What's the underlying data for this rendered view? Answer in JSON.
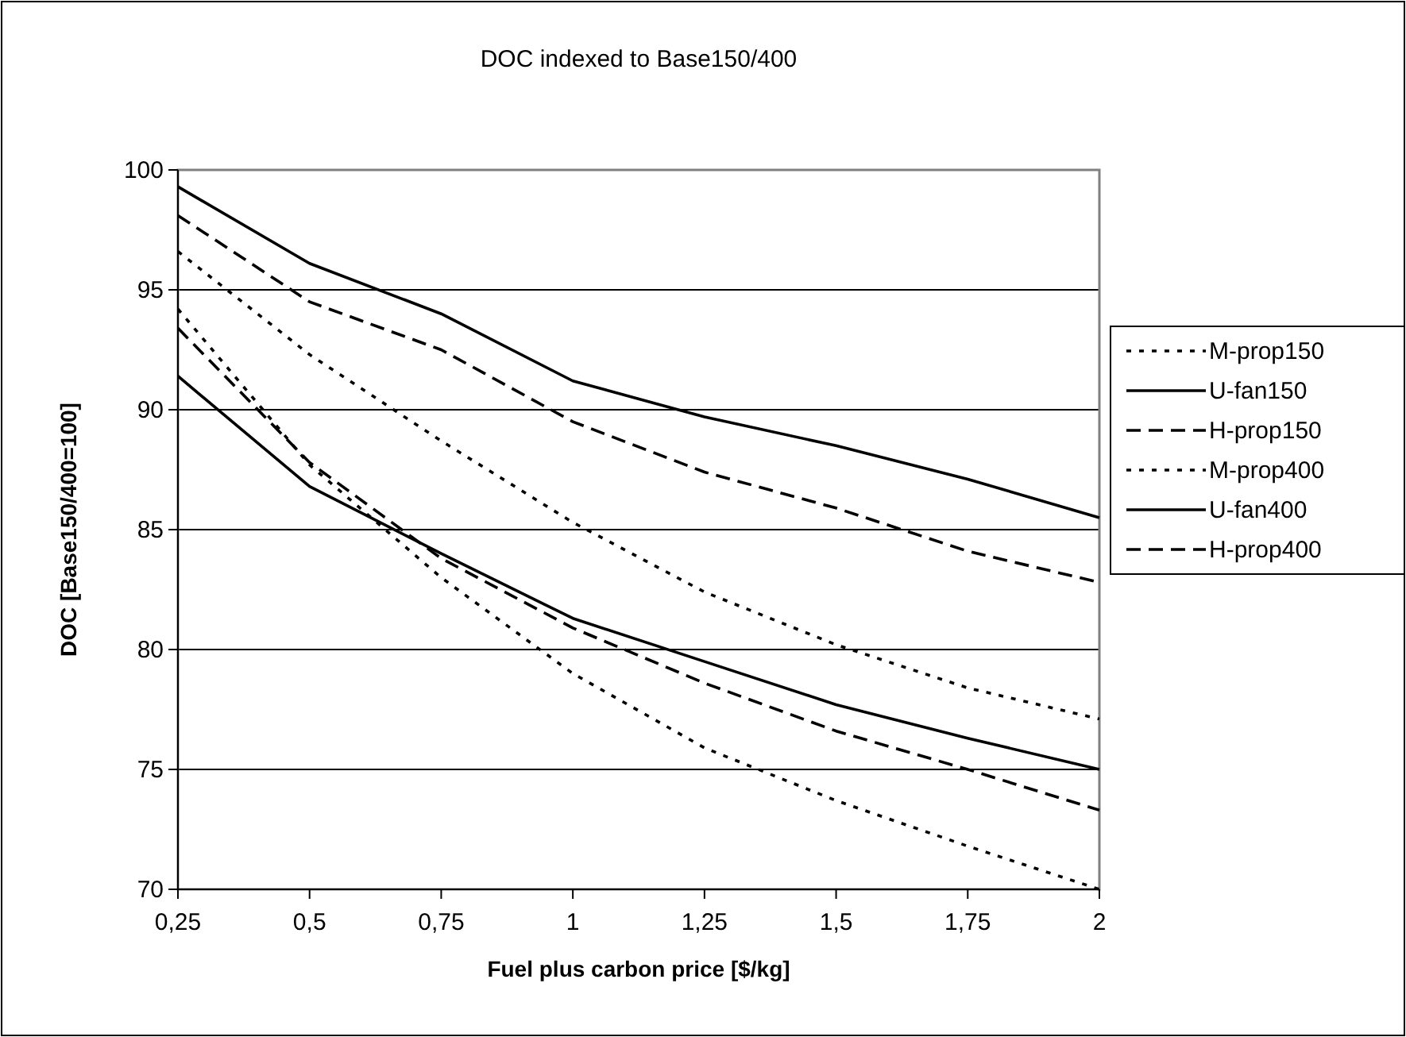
{
  "chart_data": {
    "type": "line",
    "title": "DOC indexed to Base150/400",
    "xlabel": "Fuel plus carbon price [$/kg]",
    "ylabel": "DOC [Base150/400=100]",
    "x": [
      0.25,
      0.5,
      0.75,
      1,
      1.25,
      1.5,
      1.75,
      2
    ],
    "xlim": [
      0.25,
      2
    ],
    "xticks": [
      {
        "value": 0.25,
        "label": "0,25"
      },
      {
        "value": 0.5,
        "label": "0,5"
      },
      {
        "value": 0.75,
        "label": "0,75"
      },
      1,
      {
        "value": 1.25,
        "label": "1,25"
      },
      {
        "value": 1.5,
        "label": "1,5"
      },
      {
        "value": 1.75,
        "label": "1,75"
      },
      2
    ],
    "ylim": [
      70,
      100
    ],
    "yticks": [
      70,
      75,
      80,
      85,
      90,
      95,
      100
    ],
    "grid": "y",
    "legend": "right",
    "series": [
      {
        "name": "M-prop150",
        "color": "#000000",
        "line_style": "dotted",
        "values": [
          96.6,
          92.3,
          88.7,
          85.3,
          82.4,
          80.2,
          78.4,
          77.1
        ]
      },
      {
        "name": "U-fan150",
        "color": "#000000",
        "line_style": "solid",
        "values": [
          99.3,
          96.1,
          94.0,
          91.2,
          89.7,
          88.5,
          87.1,
          85.5
        ]
      },
      {
        "name": "H-prop150",
        "color": "#000000",
        "line_style": "dashed",
        "values": [
          98.1,
          94.5,
          92.5,
          89.5,
          87.4,
          85.9,
          84.1,
          82.8
        ]
      },
      {
        "name": "M-prop400",
        "color": "#000000",
        "line_style": "dotted",
        "values": [
          94.2,
          87.7,
          83.0,
          79.0,
          75.9,
          73.7,
          71.8,
          70.0
        ]
      },
      {
        "name": "U-fan400",
        "color": "#000000",
        "line_style": "solid",
        "values": [
          91.4,
          86.8,
          84.0,
          81.3,
          79.5,
          77.7,
          76.3,
          75.0
        ]
      },
      {
        "name": "H-prop400",
        "color": "#000000",
        "line_style": "dashed",
        "values": [
          93.4,
          87.8,
          83.8,
          80.9,
          78.6,
          76.6,
          75.0,
          73.3
        ]
      }
    ]
  }
}
